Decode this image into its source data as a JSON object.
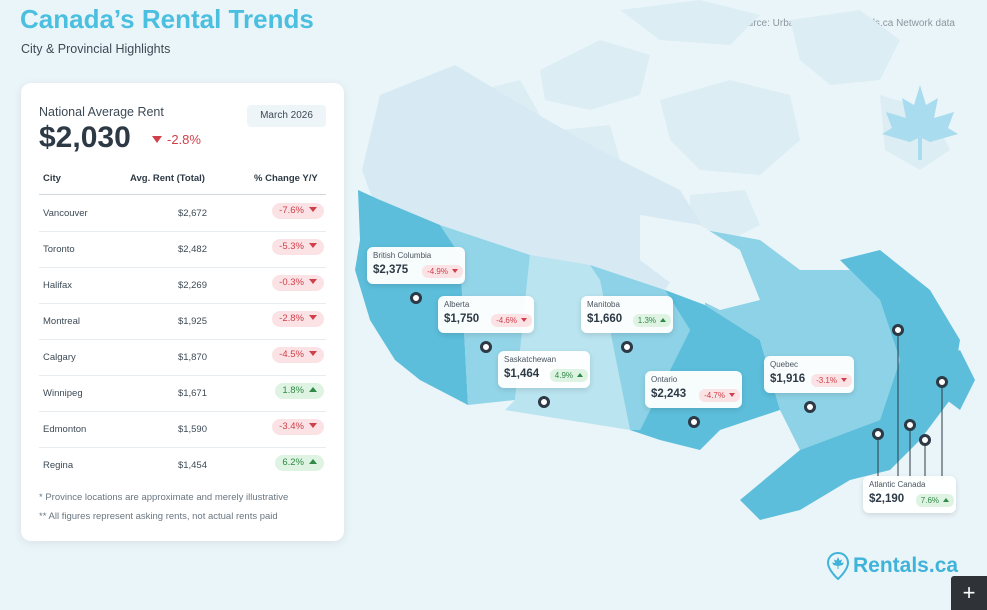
{
  "header": {
    "title": "Canada’s Rental Trends",
    "subtitle": "City & Provincial Highlights",
    "source": "Source: Urbanation Inc., Rentals.ca Network data"
  },
  "card": {
    "label": "National Average Rent",
    "value": "$2,030",
    "change": "-2.8%",
    "date": "March 2026",
    "columns": [
      "City",
      "Avg. Rent (Total)",
      "% Change Y/Y"
    ],
    "rows": [
      {
        "city": "Vancouver",
        "rent": "$2,672",
        "change": "-7.6%",
        "dir": "down"
      },
      {
        "city": "Toronto",
        "rent": "$2,482",
        "change": "-5.3%",
        "dir": "down"
      },
      {
        "city": "Halifax",
        "rent": "$2,269",
        "change": "-0.3%",
        "dir": "down"
      },
      {
        "city": "Montreal",
        "rent": "$1,925",
        "change": "-2.8%",
        "dir": "down"
      },
      {
        "city": "Calgary",
        "rent": "$1,870",
        "change": "-4.5%",
        "dir": "down"
      },
      {
        "city": "Winnipeg",
        "rent": "$1,671",
        "change": "1.8%",
        "dir": "up"
      },
      {
        "city": "Edmonton",
        "rent": "$1,590",
        "change": "-3.4%",
        "dir": "down"
      },
      {
        "city": "Regina",
        "rent": "$1,454",
        "change": "6.2%",
        "dir": "up"
      }
    ],
    "footnotes": [
      "* Province locations are approximate and merely illustrative",
      "** All figures represent asking rents, not actual rents paid"
    ]
  },
  "provinces": [
    {
      "name": "British Columbia",
      "rent": "$2,375",
      "change": "-4.9%",
      "dir": "down"
    },
    {
      "name": "Alberta",
      "rent": "$1,750",
      "change": "-4.6%",
      "dir": "down"
    },
    {
      "name": "Saskatchewan",
      "rent": "$1,464",
      "change": "4.9%",
      "dir": "up"
    },
    {
      "name": "Manitoba",
      "rent": "$1,660",
      "change": "1.3%",
      "dir": "up"
    },
    {
      "name": "Ontario",
      "rent": "$2,243",
      "change": "-4.7%",
      "dir": "down"
    },
    {
      "name": "Quebec",
      "rent": "$1,916",
      "change": "-3.1%",
      "dir": "down"
    },
    {
      "name": "Atlantic Canada",
      "rent": "$2,190",
      "change": "7.6%",
      "dir": "up"
    }
  ],
  "logo": {
    "text": "Rentals.ca",
    "icon": "maple-pin-icon"
  },
  "colors": {
    "accent": "#4bbfe0",
    "negative": "#d0404a",
    "positive": "#2f8a45"
  },
  "controls": {
    "plus": "+"
  }
}
